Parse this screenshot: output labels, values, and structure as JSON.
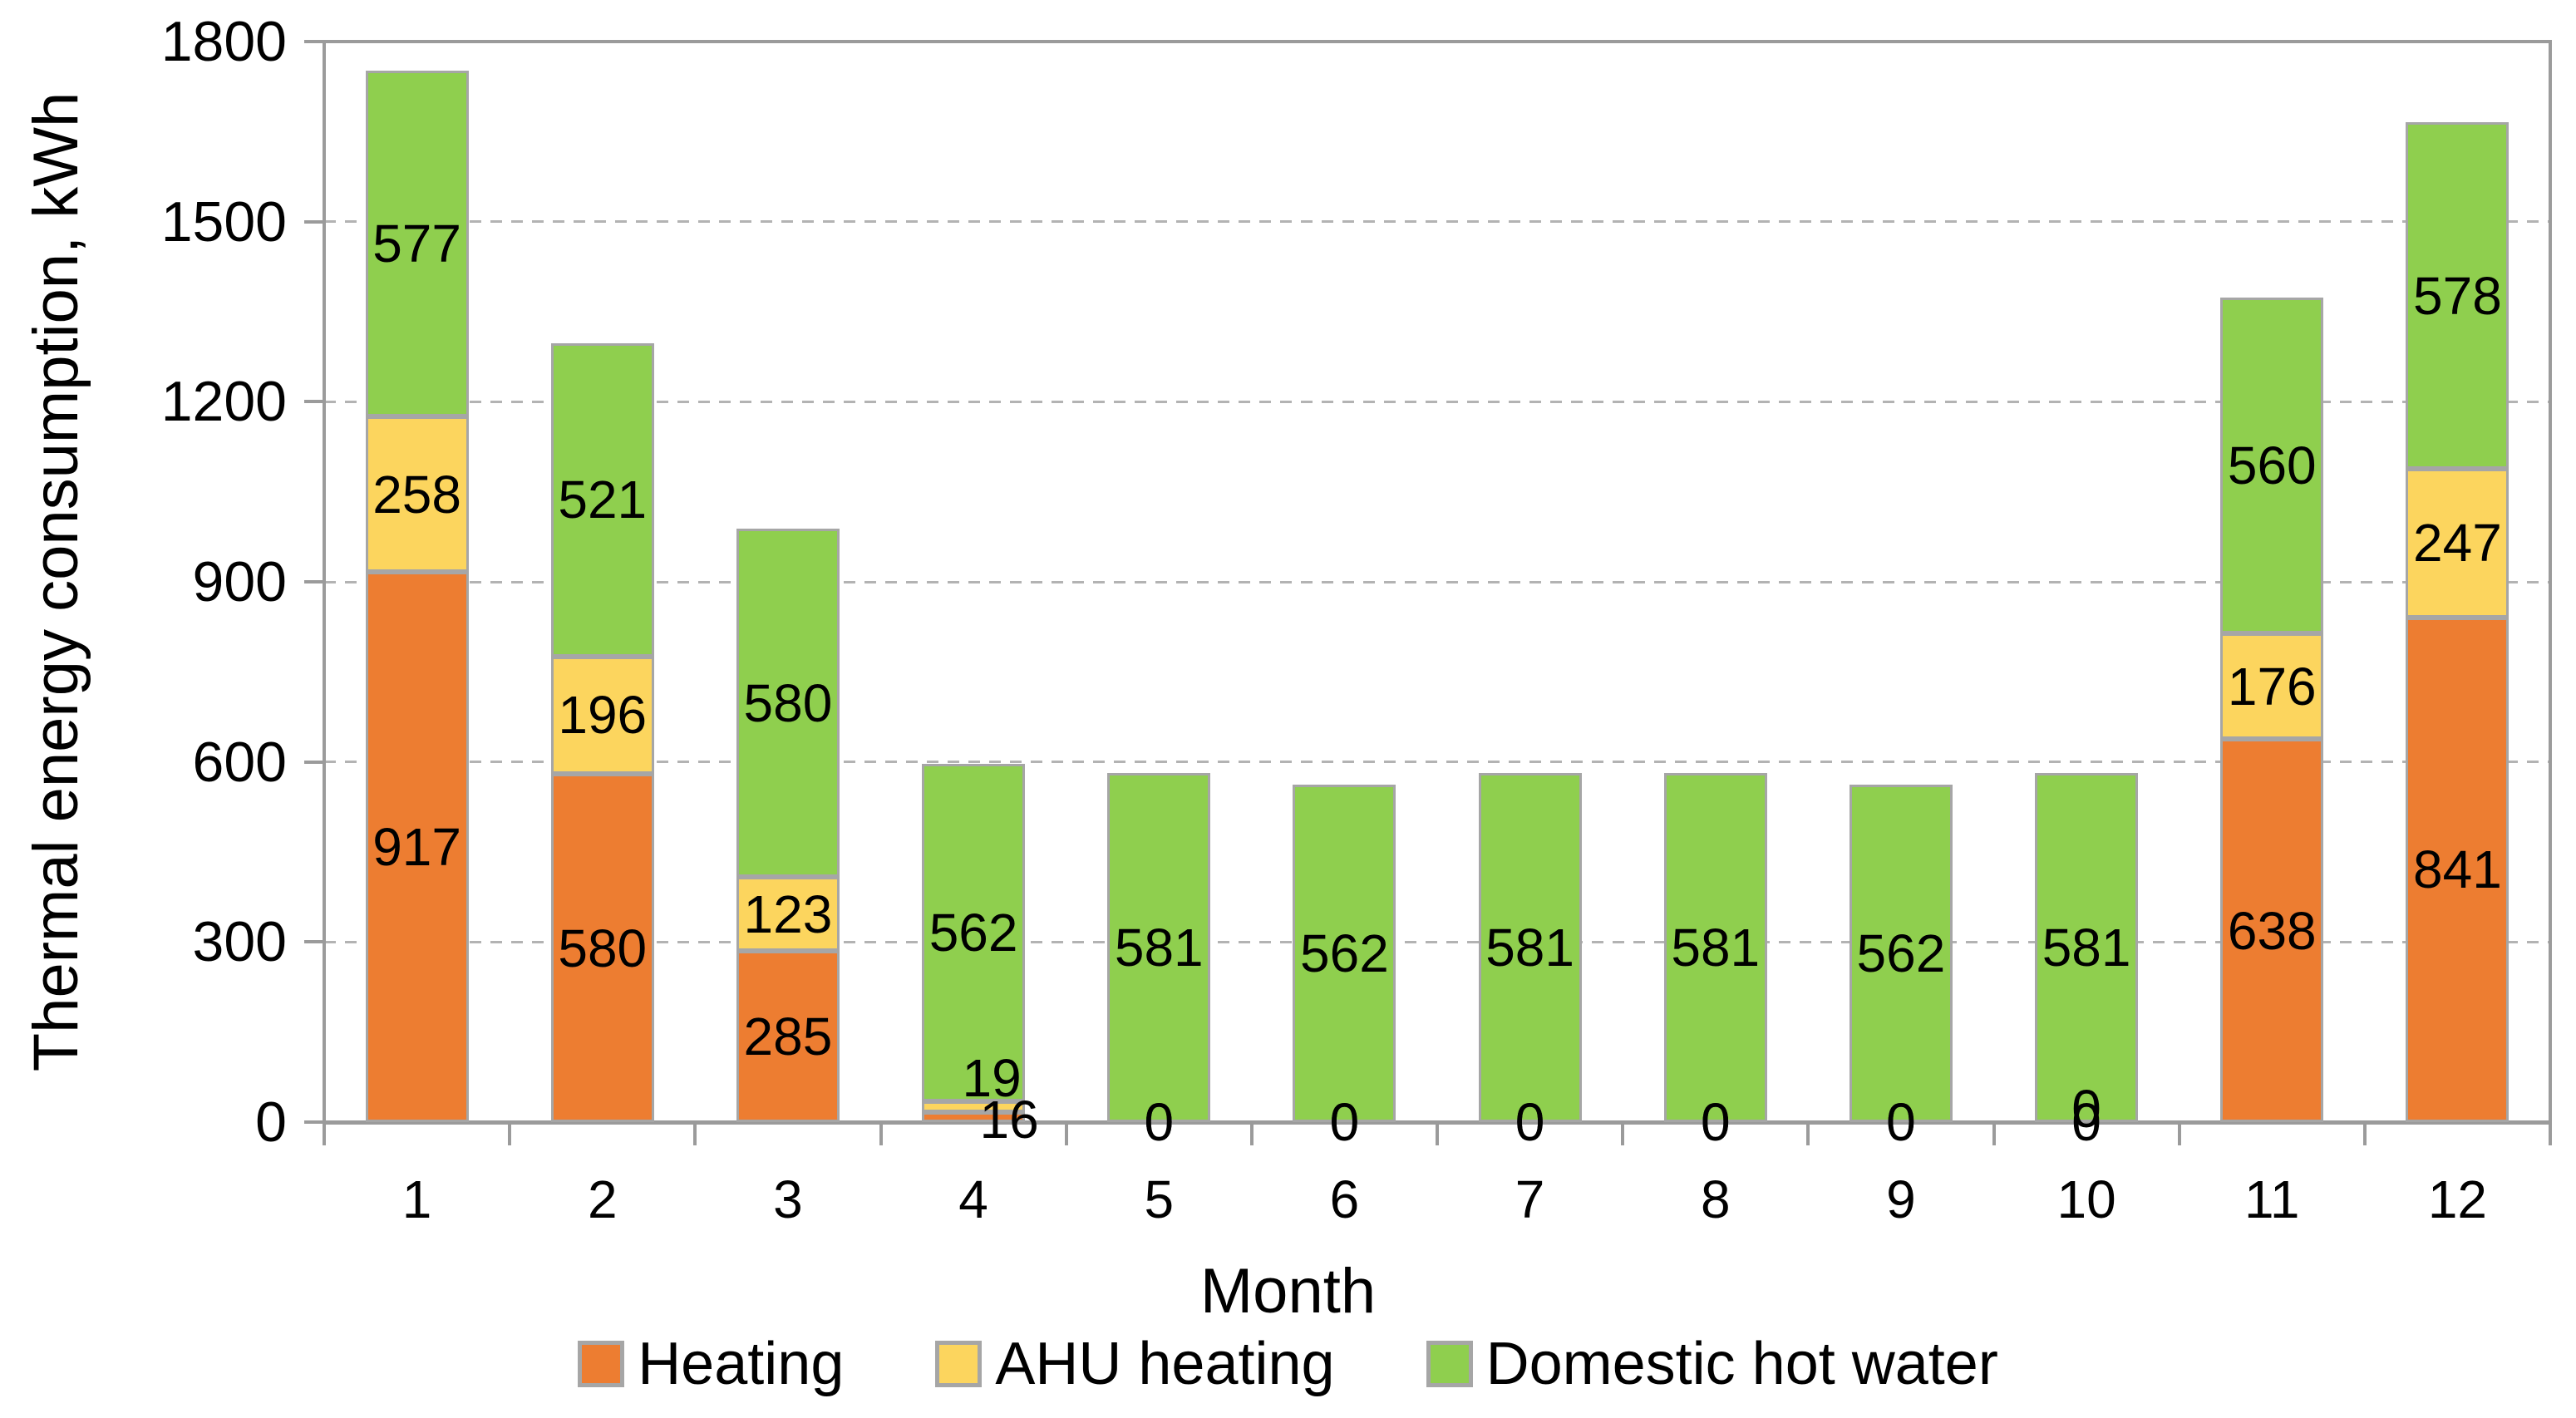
{
  "chart_data": {
    "type": "bar",
    "stacked": true,
    "title": "",
    "xlabel": "Month",
    "ylabel": "Thermal energy consumption, kWh",
    "ylim": [
      0,
      1800
    ],
    "yticks": [
      0,
      300,
      600,
      900,
      1200,
      1500,
      1800
    ],
    "categories": [
      "1",
      "2",
      "3",
      "4",
      "5",
      "6",
      "7",
      "8",
      "9",
      "10",
      "11",
      "12"
    ],
    "series": [
      {
        "name": "Heating",
        "color": "#ED7D31",
        "values": [
          917,
          580,
          285,
          16,
          0,
          0,
          0,
          0,
          0,
          0,
          638,
          841
        ]
      },
      {
        "name": "AHU heating",
        "color": "#FCD55E",
        "values": [
          258,
          196,
          123,
          19,
          0,
          0,
          0,
          0,
          0,
          0,
          176,
          247
        ]
      },
      {
        "name": "Domestic hot water",
        "color": "#8FCF4E",
        "values": [
          577,
          521,
          580,
          562,
          581,
          562,
          581,
          581,
          562,
          581,
          560,
          578
        ]
      }
    ],
    "legend_position": "bottom",
    "grid": "horizontal-dashed",
    "data_labels": "inside-center",
    "double_zero_month": 10
  }
}
